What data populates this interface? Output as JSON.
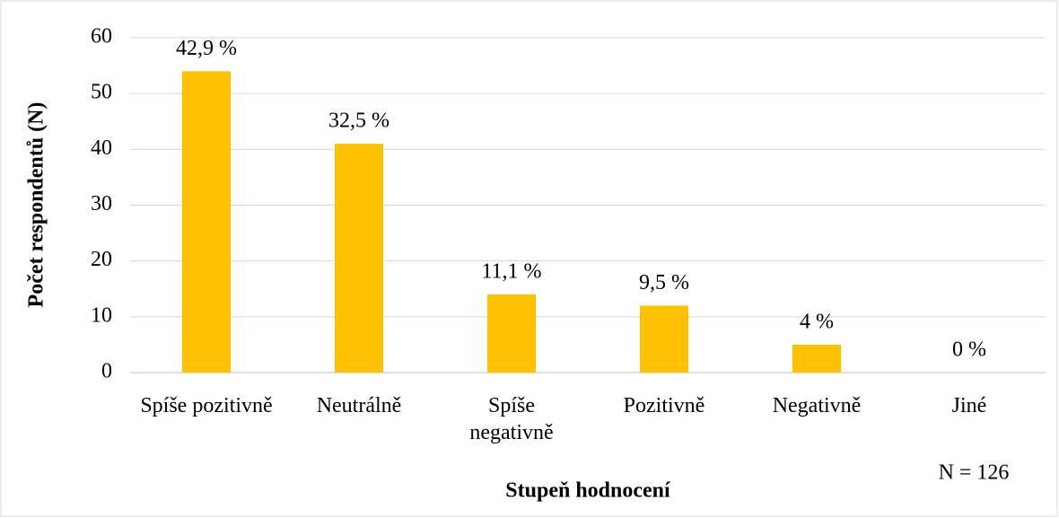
{
  "chart_data": {
    "type": "bar",
    "categories": [
      "Spíše pozitivně",
      "Neutrálně",
      "Spíše negativně",
      "Pozitivně",
      "Negativně",
      "Jiné"
    ],
    "values": [
      54,
      41,
      14,
      12,
      5,
      0
    ],
    "value_labels": [
      "42,9 %",
      "32,5 %",
      "11,1 %",
      "9,5 %",
      "4 %",
      "0 %"
    ],
    "color": "#ffc000",
    "ylim": [
      0,
      60
    ],
    "yticks": [
      0,
      10,
      20,
      30,
      40,
      50,
      60
    ],
    "grid": true,
    "y_label": "Počet respondentů (N)",
    "x_label": "Stupeň hodnocení",
    "annotation": "N = 126"
  }
}
